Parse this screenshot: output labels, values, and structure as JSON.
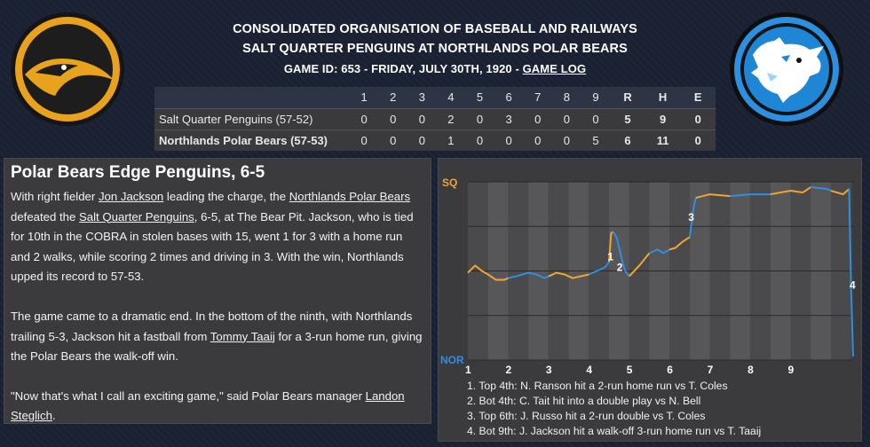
{
  "header": {
    "league": "CONSOLIDATED ORGANISATION OF BASEBALL AND RAILWAYS",
    "matchup": "SALT QUARTER PENGUINS AT NORTHLANDS POLAR BEARS",
    "game_info": "GAME ID: 653 - FRIDAY, JULY 30TH, 1920 - ",
    "game_log_link": "GAME LOG"
  },
  "logos": {
    "away": "penguin-logo",
    "home": "polar-bear-logo"
  },
  "boxscore": {
    "columns": [
      "1",
      "2",
      "3",
      "4",
      "5",
      "6",
      "7",
      "8",
      "9",
      "R",
      "H",
      "E"
    ],
    "rows": [
      {
        "team": "Salt Quarter Penguins (57-52)",
        "values": [
          "0",
          "0",
          "0",
          "2",
          "0",
          "3",
          "0",
          "0",
          "0",
          "5",
          "9",
          "0"
        ]
      },
      {
        "team": "Northlands Polar Bears (57-53)",
        "values": [
          "0",
          "0",
          "0",
          "1",
          "0",
          "0",
          "0",
          "0",
          "5",
          "6",
          "11",
          "0"
        ]
      }
    ]
  },
  "story": {
    "headline": "Polar Bears Edge Penguins, 6-5",
    "p1": {
      "a": "With right fielder ",
      "jon": "Jon Jackson",
      "b": " leading the charge, the ",
      "npb": "Northlands Polar Bears",
      "c": " defeated the ",
      "sqp": "Salt Quarter Penguins",
      "d": ", 6-5, at The Bear Pit. Jackson, who is tied for 10th in the COBRA in stolen bases with 15, went 1 for 3 with a home run and 2 walks, while scoring 2 times and driving in 3. With the win, Northlands upped its record to 57-53."
    },
    "p2": {
      "a": "The game came to a dramatic end. In the bottom of the ninth, with Northlands trailing 5-3, Jackson hit a fastball from ",
      "tommy": "Tommy Taaij",
      "b": " for a 3-run home run, giving the Polar Bears the walk-off win."
    },
    "p3": {
      "a": "\"Now that's what I call an exciting game,\" said Polar Bears manager ",
      "landon": "Landon Steglich",
      "b": "."
    }
  },
  "chart_data": {
    "type": "line",
    "title": "",
    "y_top_label": "SQ",
    "y_bottom_label": "NOR",
    "ylim": [
      0,
      100
    ],
    "innings": [
      "1",
      "2",
      "3",
      "4",
      "5",
      "6",
      "7",
      "8",
      "9"
    ],
    "colors": {
      "away": "#f0a630",
      "home": "#2d8fe0"
    },
    "series": [
      {
        "x": [
          0,
          0.18,
          0.35,
          0.5,
          0.7,
          0.9,
          1.0
        ],
        "y": [
          49,
          53,
          50,
          48,
          45,
          45,
          46
        ]
      },
      {
        "x": [
          1.0,
          1.2,
          1.5,
          1.7,
          1.9,
          2.0
        ],
        "y": [
          46,
          47,
          49,
          48,
          46,
          47
        ]
      },
      {
        "x": [
          2.0,
          2.2,
          2.4,
          2.6,
          2.8,
          3.0
        ],
        "y": [
          47,
          49,
          48,
          46,
          47,
          48
        ]
      },
      {
        "x": [
          3.0,
          3.2,
          3.4,
          3.5
        ],
        "y": [
          48,
          50,
          52,
          55
        ]
      },
      {
        "x": [
          3.5,
          3.55,
          3.6
        ],
        "y": [
          55,
          71,
          72
        ]
      },
      {
        "x": [
          3.6,
          3.7,
          3.8,
          3.9,
          4.0
        ],
        "y": [
          72,
          68,
          58,
          50,
          47
        ]
      },
      {
        "x": [
          4.0,
          4.25,
          4.5
        ],
        "y": [
          47,
          53,
          60
        ]
      },
      {
        "x": [
          4.5,
          4.7,
          4.85,
          5.0
        ],
        "y": [
          60,
          62,
          60,
          62
        ]
      },
      {
        "x": [
          5.0,
          5.15,
          5.3,
          5.5
        ],
        "y": [
          62,
          63,
          66,
          69
        ]
      },
      {
        "x": [
          5.5,
          5.6,
          5.65
        ],
        "y": [
          69,
          86,
          91
        ]
      },
      {
        "x": [
          5.65,
          6.0,
          6.5
        ],
        "y": [
          91,
          93,
          92
        ]
      },
      {
        "x": [
          6.5,
          7.0,
          7.5
        ],
        "y": [
          92,
          93,
          93
        ]
      },
      {
        "x": [
          7.5,
          8.0,
          8.3,
          8.5
        ],
        "y": [
          93,
          95,
          94,
          97
        ]
      },
      {
        "x": [
          8.5,
          8.9,
          9.0
        ],
        "y": [
          97,
          96,
          95
        ]
      },
      {
        "x": [
          9.0,
          9.3,
          9.45
        ],
        "y": [
          95,
          93,
          96
        ]
      },
      {
        "x": [
          9.45,
          9.5,
          9.55
        ],
        "y": [
          96,
          40,
          2
        ]
      }
    ],
    "markers": [
      {
        "label": "1",
        "x": 3.55,
        "y": 58
      },
      {
        "label": "2",
        "x": 3.78,
        "y": 52
      },
      {
        "label": "3",
        "x": 5.55,
        "y": 80
      },
      {
        "label": "4",
        "x": 9.55,
        "y": 42
      }
    ],
    "annotations": [
      "1. Top 4th: N. Ranson hit a 2-run home run vs T. Coles",
      "2. Bot 4th: C. Tait hit into a double play vs N. Bell",
      "3. Top 6th: J. Russo hit a 2-run double vs T. Coles",
      "4. Bot 9th: J. Jackson hit a walk-off 3-run home run vs T. Taaij"
    ]
  }
}
